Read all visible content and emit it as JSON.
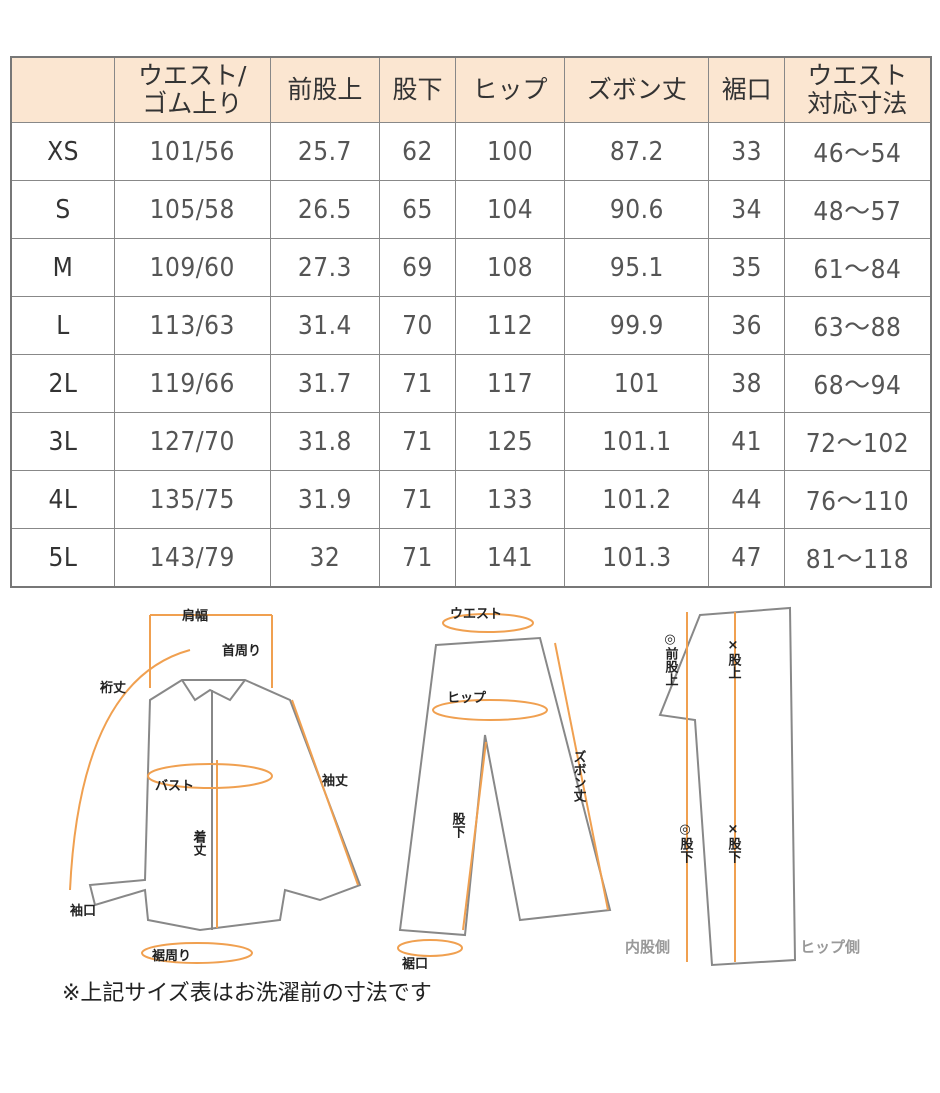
{
  "table": {
    "headers": [
      "",
      "ウエスト/\nゴム上り",
      "前股上",
      "股下",
      "ヒップ",
      "ズボン丈",
      "裾口",
      "ウエスト\n対応寸法"
    ],
    "rows": [
      [
        "XS",
        "101/56",
        "25.7",
        "62",
        "100",
        "87.2",
        "33",
        "46～54"
      ],
      [
        "S",
        "105/58",
        "26.5",
        "65",
        "104",
        "90.6",
        "34",
        "48～57"
      ],
      [
        "M",
        "109/60",
        "27.3",
        "69",
        "108",
        "95.1",
        "35",
        "61～84"
      ],
      [
        "L",
        "113/63",
        "31.4",
        "70",
        "112",
        "99.9",
        "36",
        "63～88"
      ],
      [
        "2L",
        "119/66",
        "31.7",
        "71",
        "117",
        "101",
        "38",
        "68～94"
      ],
      [
        "3L",
        "127/70",
        "31.8",
        "71",
        "125",
        "101.1",
        "41",
        "72～102"
      ],
      [
        "4L",
        "135/75",
        "31.9",
        "71",
        "133",
        "101.2",
        "44",
        "76～110"
      ],
      [
        "5L",
        "143/79",
        "32",
        "71",
        "141",
        "101.3",
        "47",
        "81～118"
      ]
    ]
  },
  "shirt": {
    "shoulder": "肩幅",
    "neck": "首周り",
    "yuki": "裄丈",
    "bust": "バスト",
    "length": "着丈",
    "sleeve": "袖丈",
    "cuff": "袖口",
    "hem": "裾周り"
  },
  "pants": {
    "waist": "ウエスト",
    "hip": "ヒップ",
    "inseam": "股下",
    "length": "ズボン丈",
    "hem": "裾口"
  },
  "side": {
    "front_rise": "◎前股上",
    "rise": "×股上",
    "inseam_in": "◎股下",
    "inseam_out": "×股下",
    "inner": "内股側",
    "hip_side": "ヒップ側"
  },
  "note": "※上記サイズ表はお洗濯前の寸法です",
  "colors": {
    "header_bg": "#fbe6d1",
    "accent": "#f0a050",
    "outline": "#888888"
  }
}
